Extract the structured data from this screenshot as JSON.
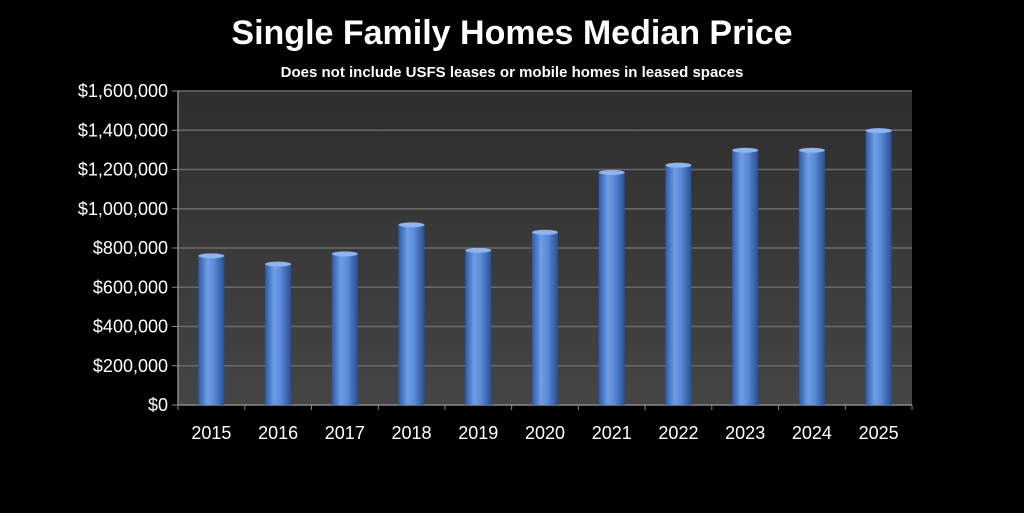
{
  "chart_data": {
    "type": "bar",
    "title": "Single Family Homes Median Price",
    "subtitle": "Does not include USFS leases or mobile homes in leased spaces",
    "xlabel": "",
    "ylabel": "",
    "categories": [
      "2015",
      "2016",
      "2017",
      "2018",
      "2019",
      "2020",
      "2021",
      "2022",
      "2023",
      "2024",
      "2025"
    ],
    "series": [
      {
        "values": [
          760000,
          718000,
          770000,
          918000,
          788000,
          880000,
          1185000,
          1222000,
          1298000,
          1298000,
          1398000
        ]
      }
    ],
    "ylim": [
      0,
      1600000
    ],
    "yticks": [
      0,
      200000,
      400000,
      600000,
      800000,
      1000000,
      1200000,
      1400000,
      1600000
    ],
    "ytick_labels": [
      "$0",
      "$200,000",
      "$400,000",
      "$600,000",
      "$800,000",
      "$1,000,000",
      "$1,200,000",
      "$1,400,000",
      "$1,600,000"
    ],
    "grid": true,
    "legend": "none",
    "colors": {
      "background": "#000000",
      "plot_background": "#3a3a3a",
      "bar": "#4f7fd0",
      "grid": "#6a6a6a",
      "text": "#ffffff"
    }
  }
}
